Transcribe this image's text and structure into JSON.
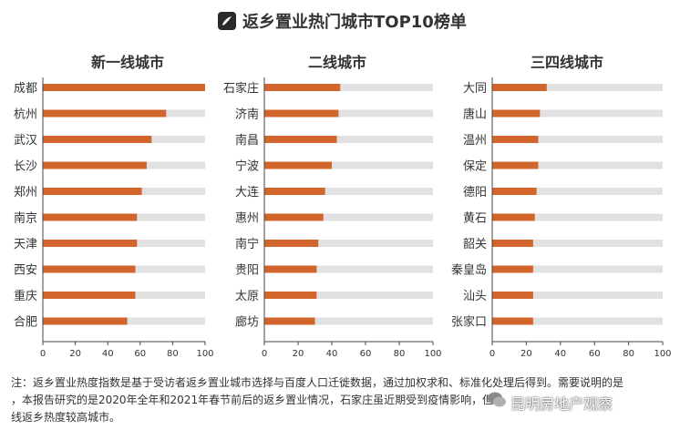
{
  "header": {
    "title": "返乡置业热门城市TOP10榜单"
  },
  "colors": {
    "bar": "#d2652b",
    "track": "#e1e1e1",
    "axis": "#444444"
  },
  "chart_data": [
    {
      "type": "bar",
      "title": "新一线城市",
      "categories": [
        "成都",
        "杭州",
        "武汉",
        "长沙",
        "郑州",
        "南京",
        "天津",
        "西安",
        "重庆",
        "合肥"
      ],
      "values": [
        100,
        76,
        67,
        64,
        61,
        58,
        58,
        57,
        57,
        52
      ],
      "xlim": [
        0,
        100
      ],
      "xticks": [
        "0",
        "20",
        "40",
        "60",
        "80",
        "100"
      ]
    },
    {
      "type": "bar",
      "title": "二线城市",
      "categories": [
        "石家庄",
        "济南",
        "南昌",
        "宁波",
        "大连",
        "惠州",
        "南宁",
        "贵阳",
        "太原",
        "廊坊"
      ],
      "values": [
        45,
        44,
        43,
        40,
        36,
        35,
        32,
        31,
        31,
        30
      ],
      "xlim": [
        0,
        100
      ],
      "xticks": [
        "0",
        "20",
        "40",
        "60",
        "80",
        "100"
      ]
    },
    {
      "type": "bar",
      "title": "三四线城市",
      "categories": [
        "大同",
        "唐山",
        "温州",
        "保定",
        "德阳",
        "黄石",
        "韶关",
        "秦皇岛",
        "汕头",
        "张家口"
      ],
      "values": [
        32,
        28,
        27,
        27,
        26,
        25,
        24,
        24,
        24,
        24
      ],
      "xlim": [
        0,
        100
      ],
      "xticks": [
        "0",
        "20",
        "40",
        "60",
        "80",
        "100"
      ]
    }
  ],
  "footnote": {
    "line1": "注：返乡置业热度指数是基于受访者返乡置业城市选择与百度人口迁徙数据，通过加权求和、标准化处理后得到。需要说明的是",
    "line2": "，本报告研究的是2020年全年和2021年春节前后的返乡置业情况，石家庄虽近期受到疫情影响，但",
    "line3": "线返乡热度较高城市。"
  },
  "watermark": {
    "text": "昆明房地产观察"
  }
}
